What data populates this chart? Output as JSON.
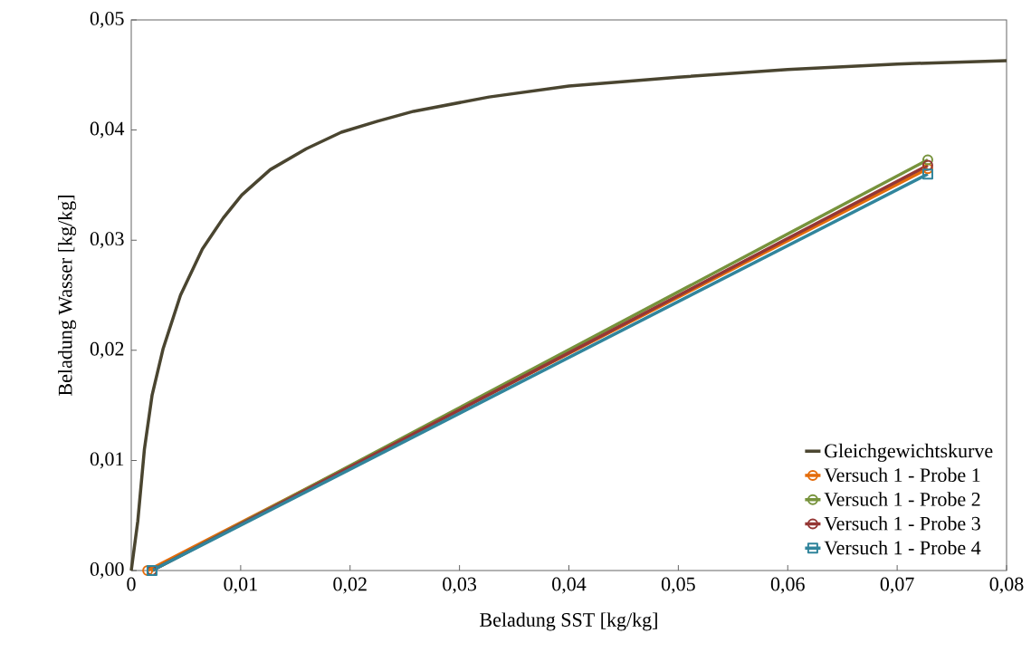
{
  "chart_data": {
    "type": "line",
    "xlabel": "Beladung SST [kg/kg]",
    "ylabel": "Beladung Wasser [kg/kg]",
    "xlim": [
      0,
      0.08
    ],
    "ylim": [
      0,
      0.05
    ],
    "xticks": [
      0,
      {
        "value": 0.01,
        "label": "0,01"
      },
      {
        "value": 0.02,
        "label": "0,02"
      },
      {
        "value": 0.03,
        "label": "0,03"
      },
      {
        "value": 0.04,
        "label": "0,04"
      },
      {
        "value": 0.05,
        "label": "0,05"
      },
      {
        "value": 0.06,
        "label": "0,06"
      },
      {
        "value": 0.07,
        "label": "0,07"
      },
      {
        "value": 0.08,
        "label": "0,08"
      }
    ],
    "yticks": [
      {
        "value": 0,
        "label": "0,00"
      },
      {
        "value": 0.01,
        "label": "0,01"
      },
      {
        "value": 0.02,
        "label": "0,02"
      },
      {
        "value": 0.03,
        "label": "0,03"
      },
      {
        "value": 0.04,
        "label": "0,04"
      },
      {
        "value": 0.05,
        "label": "0,05"
      }
    ],
    "grid": false,
    "legend": "bottom right",
    "series": [
      {
        "name": "Gleichgewichtskurve",
        "color": "#4a4530",
        "marker": "none",
        "x": [
          0,
          0.0006,
          0.0012,
          0.0019,
          0.0029,
          0.0045,
          0.0065,
          0.0084,
          0.0101,
          0.0127,
          0.016,
          0.0192,
          0.0225,
          0.0258,
          0.0327,
          0.04,
          0.05,
          0.06,
          0.07,
          0.08
        ],
        "values": [
          0,
          0.0045,
          0.011,
          0.0159,
          0.0201,
          0.025,
          0.0292,
          0.032,
          0.0341,
          0.0364,
          0.0383,
          0.0398,
          0.0408,
          0.0417,
          0.043,
          0.044,
          0.0448,
          0.0455,
          0.046,
          0.0463
        ]
      },
      {
        "name": "Versuch 1 - Probe 1",
        "color": "#e46c0a",
        "marker": "circle",
        "x": [
          0.0015,
          0.0728
        ],
        "values": [
          0,
          0.0365
        ]
      },
      {
        "name": "Versuch 1 - Probe 2",
        "color": "#77933c",
        "marker": "circle",
        "x": [
          0.0019,
          0.0728
        ],
        "values": [
          0,
          0.0373
        ]
      },
      {
        "name": "Versuch 1 - Probe 3",
        "color": "#953735",
        "marker": "circle",
        "x": [
          0.0019,
          0.0728
        ],
        "values": [
          0,
          0.0368
        ]
      },
      {
        "name": "Versuch 1 - Probe 4",
        "color": "#31859c",
        "marker": "square",
        "x": [
          0.0019,
          0.0728
        ],
        "values": [
          0,
          0.036
        ]
      }
    ]
  }
}
